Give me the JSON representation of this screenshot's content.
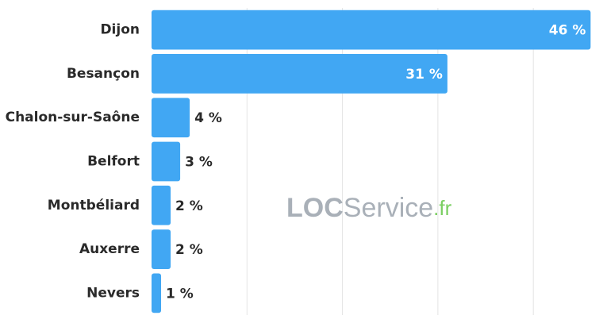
{
  "chart_data": {
    "type": "barh",
    "categories": [
      "Dijon",
      "Besançon",
      "Chalon-sur-Saône",
      "Belfort",
      "Montbéliard",
      "Auxerre",
      "Nevers"
    ],
    "values": [
      46,
      31,
      4,
      3,
      2,
      2,
      1
    ],
    "value_labels": [
      "46 %",
      "31 %",
      "4 %",
      "3 %",
      "2 %",
      "2 %",
      "1 %"
    ],
    "color": "#41a7f3",
    "xlim": [
      0,
      47.3
    ],
    "xticks": [
      10,
      20,
      30,
      40
    ],
    "grid": true,
    "watermark": {
      "brand": "LOC",
      "name": "Service",
      "suffix": ".fr"
    }
  }
}
